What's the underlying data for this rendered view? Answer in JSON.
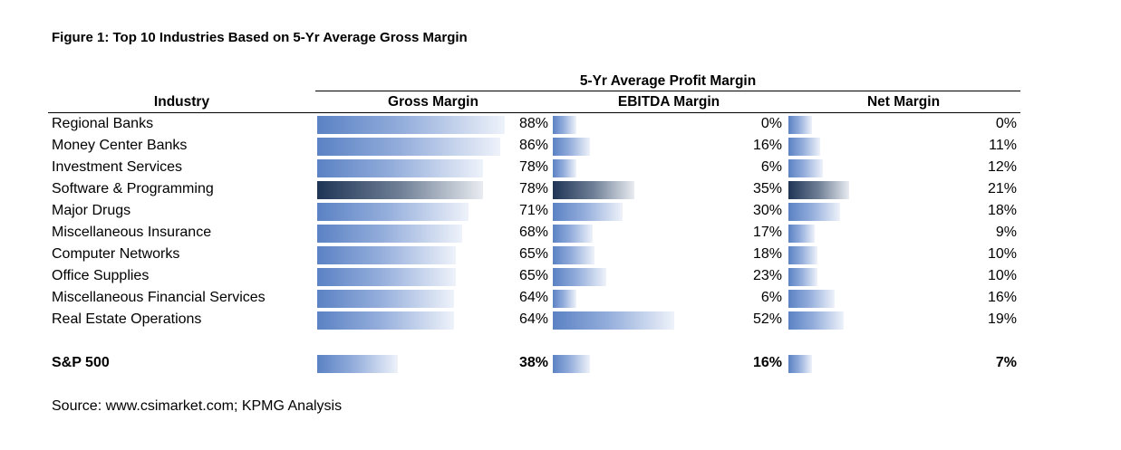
{
  "chart_data": {
    "type": "bar",
    "title": "Figure 1:  Top 10 Industries Based on 5-Yr Average Gross Margin",
    "group_header": "5-Yr Average Profit Margin",
    "category_header": "Industry",
    "series_names": [
      "Gross Margin",
      "EBITDA Margin",
      "Net Margin"
    ],
    "rows": [
      {
        "industry": "Regional Banks",
        "gross": 88,
        "ebitda": 0,
        "net": 0,
        "highlight": false
      },
      {
        "industry": "Money Center Banks",
        "gross": 86,
        "ebitda": 16,
        "net": 11,
        "highlight": false
      },
      {
        "industry": "Investment Services",
        "gross": 78,
        "ebitda": 6,
        "net": 12,
        "highlight": false
      },
      {
        "industry": "Software & Programming",
        "gross": 78,
        "ebitda": 35,
        "net": 21,
        "highlight": true
      },
      {
        "industry": "Major Drugs",
        "gross": 71,
        "ebitda": 30,
        "net": 18,
        "highlight": false
      },
      {
        "industry": "Miscellaneous Insurance",
        "gross": 68,
        "ebitda": 17,
        "net": 9,
        "highlight": false
      },
      {
        "industry": "Computer Networks",
        "gross": 65,
        "ebitda": 18,
        "net": 10,
        "highlight": false
      },
      {
        "industry": "Office Supplies",
        "gross": 65,
        "ebitda": 23,
        "net": 10,
        "highlight": false
      },
      {
        "industry": "Miscellaneous Financial Services",
        "gross": 64,
        "ebitda": 6,
        "net": 16,
        "highlight": false
      },
      {
        "industry": "Real Estate Operations",
        "gross": 64,
        "ebitda": 52,
        "net": 19,
        "highlight": false
      }
    ],
    "total": {
      "industry": "S&P 500",
      "gross": 38,
      "ebitda": 16,
      "net": 7
    },
    "value_suffix": "%",
    "source": "Source:  www.csimarket.com; KPMG Analysis"
  }
}
